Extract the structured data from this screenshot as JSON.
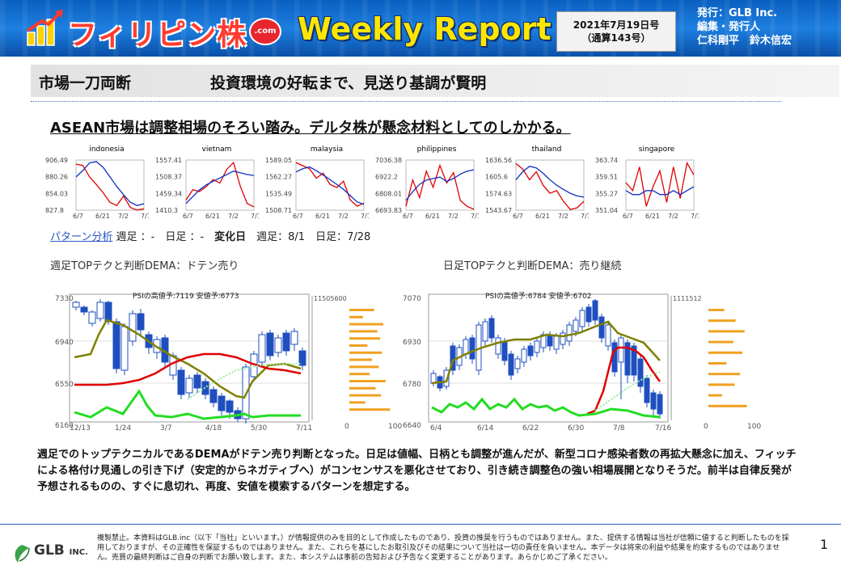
{
  "header": {
    "logo_text": "フィリピン株",
    "com_label": ".com",
    "report_title": "Weekly Report",
    "date": "2021年7月19日号",
    "issue": "（通算143号）",
    "publisher_line1": "発行：GLB Inc.",
    "publisher_line2": "編集・発行人",
    "publisher_line3": "仁科剛平　鈴木信宏",
    "colors": {
      "bar": "#1470d0",
      "logo_red": "#ff3b2f",
      "title_yellow": "#ffe600"
    }
  },
  "section": {
    "label": "市場一刀両断",
    "headline": "投資環境の好転まで、見送り基調が賢明"
  },
  "subheading": "ASEAN市場は調整相場のそろい踏み。デルタ株が懸念材料としてのしかかる。",
  "mini_charts": [
    {
      "name": "indonesia",
      "yticks": [
        "906.49",
        "880.26",
        "854.03",
        "827.8"
      ],
      "xticks": [
        "6/7",
        "6/21",
        "7/2",
        "7/16"
      ],
      "red": [
        900,
        898,
        880,
        868,
        855,
        840,
        835,
        850,
        832,
        828,
        830
      ],
      "blue": [
        880,
        890,
        902,
        904,
        895,
        880,
        865,
        852,
        840,
        835,
        838
      ]
    },
    {
      "name": "vietnam",
      "yticks": [
        "1557.41",
        "1508.37",
        "1459.34",
        "1410.3"
      ],
      "xticks": [
        "6/7",
        "6/21",
        "7/2",
        "7/16"
      ],
      "red": [
        1440,
        1470,
        1465,
        1480,
        1500,
        1490,
        1530,
        1550,
        1480,
        1430,
        1420
      ],
      "blue": [
        1430,
        1450,
        1470,
        1485,
        1495,
        1505,
        1515,
        1525,
        1520,
        1515,
        1512
      ]
    },
    {
      "name": "malaysia",
      "yticks": [
        "1589.05",
        "1562.27",
        "1535.49",
        "1508.71"
      ],
      "xticks": [
        "6/7",
        "6/21",
        "7/2",
        "7/16"
      ],
      "red": [
        1585,
        1580,
        1575,
        1560,
        1568,
        1550,
        1545,
        1555,
        1525,
        1515,
        1520
      ],
      "blue": [
        1570,
        1575,
        1578,
        1572,
        1565,
        1558,
        1550,
        1542,
        1532,
        1522,
        1518
      ]
    },
    {
      "name": "philippines",
      "yticks": [
        "7036.38",
        "6922.2",
        "6808.01",
        "6693.83"
      ],
      "xticks": [
        "6/7",
        "6/21",
        "7/2",
        "7/16"
      ],
      "red": [
        6720,
        6900,
        6780,
        6960,
        6850,
        7000,
        6880,
        6950,
        6760,
        6720,
        6700
      ],
      "blue": [
        6760,
        6820,
        6870,
        6900,
        6910,
        6920,
        6890,
        6910,
        6940,
        6960,
        6970
      ]
    },
    {
      "name": "thailand",
      "yticks": [
        "1636.56",
        "1605.6",
        "1574.63",
        "1543.67"
      ],
      "xticks": [
        "6/7",
        "6/21",
        "7/2",
        "7/16"
      ],
      "red": [
        1630,
        1620,
        1600,
        1615,
        1590,
        1575,
        1580,
        1560,
        1545,
        1548,
        1560
      ],
      "blue": [
        1600,
        1615,
        1625,
        1622,
        1612,
        1600,
        1590,
        1582,
        1575,
        1570,
        1568
      ]
    },
    {
      "name": "singapore",
      "yticks": [
        "363.74",
        "359.51",
        "355.27",
        "351.04"
      ],
      "xticks": [
        "6/7",
        "6/21",
        "7/2",
        "7/16"
      ],
      "red": [
        358,
        356,
        362,
        352,
        357,
        361,
        353,
        362,
        354,
        363,
        360
      ],
      "blue": [
        356,
        355,
        355,
        356,
        356,
        355,
        355,
        356,
        355,
        356,
        357
      ]
    }
  ],
  "pattern": {
    "link_label": "パターン分析",
    "text_weekly": " 週足 ：-　日足 ：-　",
    "change_label": "変化日",
    "text_dates": "　週足：8/1　日足：7/28"
  },
  "weekly_chart": {
    "title": "週足TOPテクと判断DEMA：ドテン売り",
    "psi": "PSIの高値予:7119 安値予:6773",
    "yticks": [
      "7330",
      "6940",
      "6550",
      "6160"
    ],
    "xticks": [
      "12/13",
      "1/24",
      "3/7",
      "4/18",
      "5/30",
      "7/11"
    ],
    "vol_max": "11505600",
    "vol_axis": [
      "0",
      "100"
    ],
    "vol_bars": [
      55,
      30,
      75,
      62,
      68,
      40,
      72,
      50,
      65,
      45,
      80,
      58,
      70,
      35,
      90
    ]
  },
  "daily_chart": {
    "title": "日足TOPテクと判断DEMA：売り継続",
    "psi": "PSIの高値予:6784 安値予:6702",
    "yticks": [
      "7070",
      "6930",
      "6780",
      "6640"
    ],
    "xticks": [
      "6/4",
      "6/14",
      "6/22",
      "6/30",
      "7/8",
      "7/16"
    ],
    "vol_max": "1111512",
    "vol_axis": [
      "0",
      "100"
    ],
    "vol_bars": [
      35,
      60,
      80,
      55,
      75,
      40,
      70,
      58,
      30,
      85
    ]
  },
  "summary": "週足でのトップテクニカルであるDEMAがドテン売り判断となった。日足は値幅、日柄とも調整が進んだが、新型コロナ感染者数の再拡大懸念に加え、フィッチによる格付け見通しの引き下げ（安定的からネガティブへ）がコンセンサスを悪化させており、引き続き調整色の強い相場展開となりそうだ。前半は自律反発が予想されるものの、すぐに息切れ、再度、安値を模索するパターンを想定する。",
  "footer": {
    "company": "GLB",
    "company_suffix": "INC.",
    "disclaimer": "複製禁止。本資料はGLB.inc（以下「当社」といいます。）が情報提供のみを目的として作成したものであり、投資の推奨を行うものではありません。また、提供する情報は当社が信頼に値すると判断したものを採用しておりますが、その正確性を保証するものではありません。また、これらを基にしたお取引及びその結果について当社は一切の責任を負いません。本データは将来の利益や結果を約束するものではありません。売買の最終判断はご自身の判断でお願い致します。また、本システムは事前の告知および予告なく変更することがあります。あらかじめご了承ください。",
    "page": "1"
  }
}
